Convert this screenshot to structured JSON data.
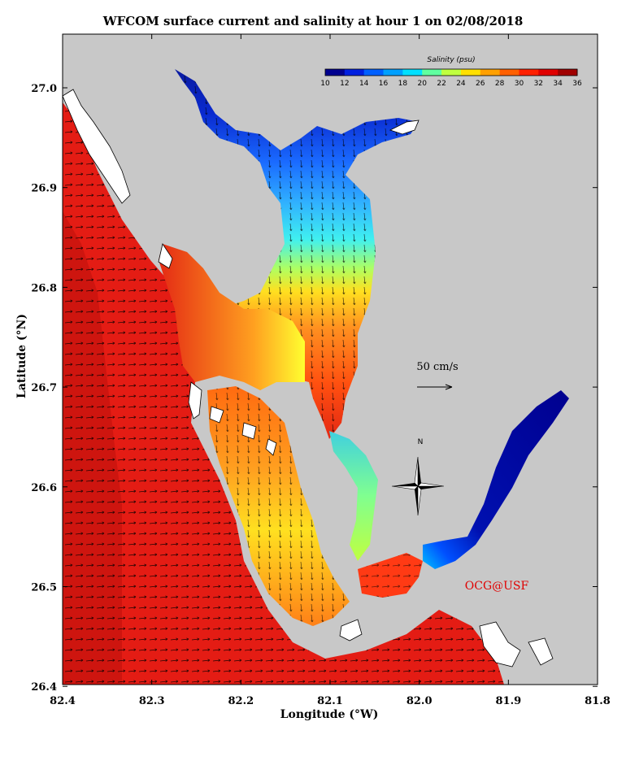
{
  "title": "WFCOM surface current and salinity at hour 1 on 02/08/2018",
  "x_axis": {
    "label": "Longitude (°W)",
    "ticks": [
      "82.4",
      "82.3",
      "82.2",
      "82.1",
      "82.0",
      "81.9",
      "81.8"
    ]
  },
  "y_axis": {
    "label": "Latitude (°N)",
    "ticks": [
      "27.0",
      "26.9",
      "26.8",
      "26.7",
      "26.6",
      "26.5",
      "26.4"
    ]
  },
  "colorbar": {
    "title": "Salinity (psu)",
    "ticks": [
      "10",
      "12",
      "14",
      "16",
      "18",
      "20",
      "22",
      "24",
      "26",
      "28",
      "30",
      "32",
      "34",
      "36"
    ],
    "colors": [
      "#00008f",
      "#0020e0",
      "#0060ff",
      "#00a0ff",
      "#00e0ff",
      "#60ffa0",
      "#c0ff40",
      "#ffe000",
      "#ffa000",
      "#ff6000",
      "#ff2000",
      "#e00000",
      "#a00000"
    ]
  },
  "scale_arrow": {
    "label": "50 cm/s"
  },
  "compass": {
    "north_label": "N"
  },
  "credit": {
    "text": "OCG@USF",
    "color": "#e00000"
  },
  "colors": {
    "land": "#c8c8c8",
    "island": "#ffffff",
    "ocean_salty": "#e41c14",
    "deep_band": "#c8140e"
  }
}
